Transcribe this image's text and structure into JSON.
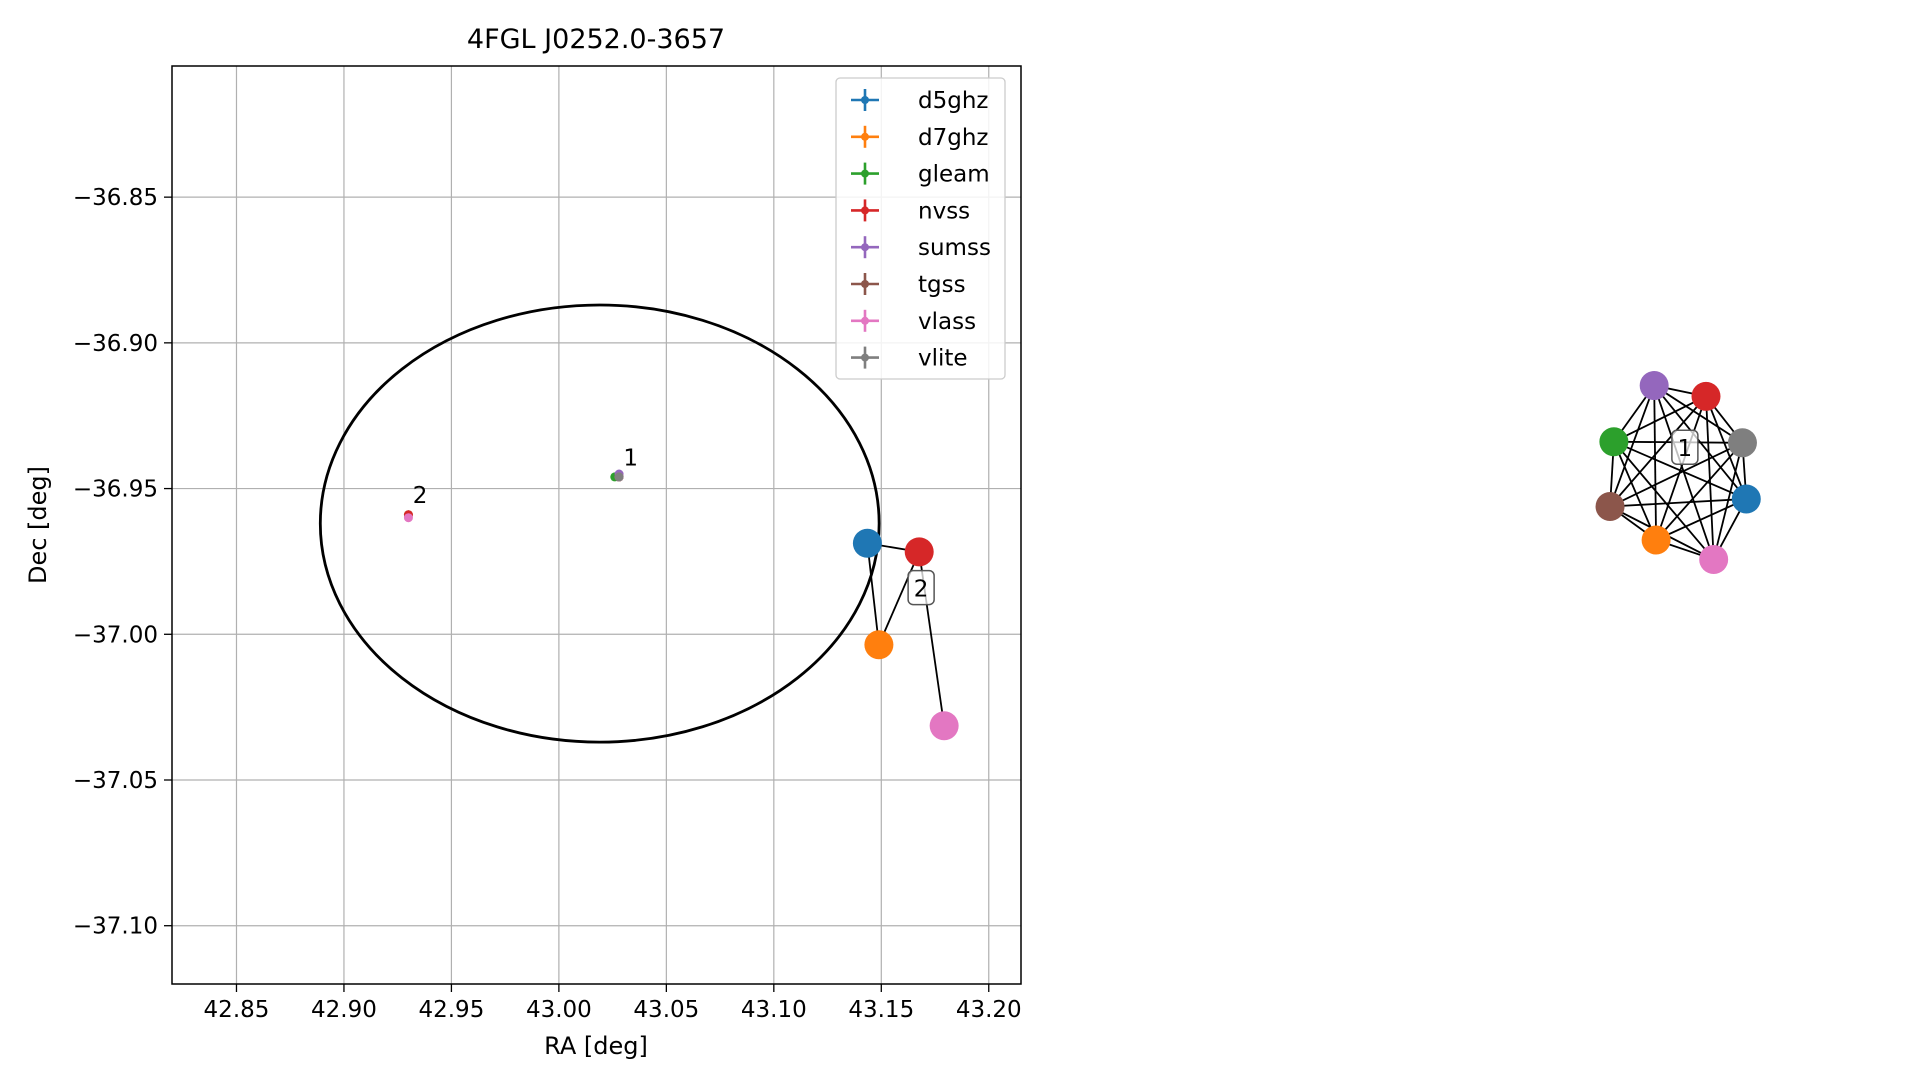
{
  "chart_data": [
    {
      "type": "scatter",
      "title": "4FGL J0252.0-3657",
      "xlabel": "RA [deg]",
      "ylabel": "Dec [deg]",
      "xlim": [
        42.82,
        43.215
      ],
      "ylim": [
        -37.12,
        -36.805
      ],
      "x_ticks": [
        42.85,
        42.9,
        42.95,
        43.0,
        43.05,
        43.1,
        43.15,
        43.2
      ],
      "x_tick_labels": [
        "42.85",
        "42.90",
        "42.95",
        "43.00",
        "43.05",
        "43.10",
        "43.15",
        "43.20"
      ],
      "y_ticks": [
        -36.85,
        -36.9,
        -36.95,
        -37.0,
        -37.05,
        -37.1
      ],
      "y_tick_labels": [
        "−36.85",
        "−36.90",
        "−36.95",
        "−37.00",
        "−37.05",
        "−37.10"
      ],
      "grid": true,
      "legend_position": "top-right",
      "series": [
        {
          "name": "d5ghz",
          "color": "#1f77b4",
          "points": [
            {
              "x": 43.028,
              "y": -36.946
            },
            {
              "x": 42.93,
              "y": -36.959
            }
          ]
        },
        {
          "name": "d7ghz",
          "color": "#ff7f0e",
          "points": [
            {
              "x": 43.028,
              "y": -36.946
            },
            {
              "x": 42.93,
              "y": -36.959
            }
          ]
        },
        {
          "name": "gleam",
          "color": "#2ca02c",
          "points": [
            {
              "x": 43.026,
              "y": -36.946
            }
          ]
        },
        {
          "name": "nvss",
          "color": "#d62728",
          "points": [
            {
              "x": 43.028,
              "y": -36.946
            },
            {
              "x": 42.93,
              "y": -36.959
            }
          ]
        },
        {
          "name": "sumss",
          "color": "#9467bd",
          "points": [
            {
              "x": 43.028,
              "y": -36.945
            }
          ]
        },
        {
          "name": "tgss",
          "color": "#8c564b",
          "points": [
            {
              "x": 43.028,
              "y": -36.946
            }
          ]
        },
        {
          "name": "vlass",
          "color": "#e377c2",
          "points": [
            {
              "x": 43.028,
              "y": -36.946
            },
            {
              "x": 42.93,
              "y": -36.96
            }
          ]
        },
        {
          "name": "vlite",
          "color": "#7f7f7f",
          "points": [
            {
              "x": 43.028,
              "y": -36.946
            }
          ]
        }
      ],
      "annotations": [
        {
          "text": "1",
          "x": 43.03,
          "y": -36.942
        },
        {
          "text": "2",
          "x": 42.932,
          "y": -36.955
        }
      ],
      "ellipse": {
        "center_x": 43.019,
        "center_y": -36.962,
        "semi_x": 0.13,
        "semi_y": 0.075,
        "color": "#000000"
      }
    },
    {
      "type": "network",
      "clusters": [
        {
          "label": "2",
          "label_pos": {
            "x": 0.48,
            "y": 0.545
          },
          "nodes": [
            {
              "id": "d5ghz",
              "color": "#1f77b4",
              "pos": {
                "x": 0.452,
                "y": 0.503
              }
            },
            {
              "id": "nvss",
              "color": "#d62728",
              "pos": {
                "x": 0.479,
                "y": 0.511
              }
            },
            {
              "id": "d7ghz",
              "color": "#ff7f0e",
              "pos": {
                "x": 0.458,
                "y": 0.597
              }
            },
            {
              "id": "vlass",
              "color": "#e377c2",
              "pos": {
                "x": 0.492,
                "y": 0.672
              }
            }
          ],
          "edges": [
            [
              "d5ghz",
              "nvss"
            ],
            [
              "d5ghz",
              "d7ghz"
            ],
            [
              "d7ghz",
              "nvss"
            ],
            [
              "nvss",
              "vlass"
            ]
          ]
        },
        {
          "label": "1",
          "label_pos": {
            "x": 0.878,
            "y": 0.415
          },
          "nodes": [
            {
              "id": "sumss",
              "color": "#9467bd",
              "pos": {
                "x": 0.862,
                "y": 0.357
              }
            },
            {
              "id": "nvss",
              "color": "#d62728",
              "pos": {
                "x": 0.889,
                "y": 0.367
              }
            },
            {
              "id": "gleam",
              "color": "#2ca02c",
              "pos": {
                "x": 0.841,
                "y": 0.409
              }
            },
            {
              "id": "vlite",
              "color": "#7f7f7f",
              "pos": {
                "x": 0.908,
                "y": 0.41
              }
            },
            {
              "id": "tgss",
              "color": "#8c564b",
              "pos": {
                "x": 0.839,
                "y": 0.469
              }
            },
            {
              "id": "d5ghz",
              "color": "#1f77b4",
              "pos": {
                "x": 0.91,
                "y": 0.462
              }
            },
            {
              "id": "d7ghz",
              "color": "#ff7f0e",
              "pos": {
                "x": 0.863,
                "y": 0.5
              }
            },
            {
              "id": "vlass",
              "color": "#e377c2",
              "pos": {
                "x": 0.893,
                "y": 0.518
              }
            }
          ],
          "edges": "complete"
        }
      ]
    }
  ]
}
